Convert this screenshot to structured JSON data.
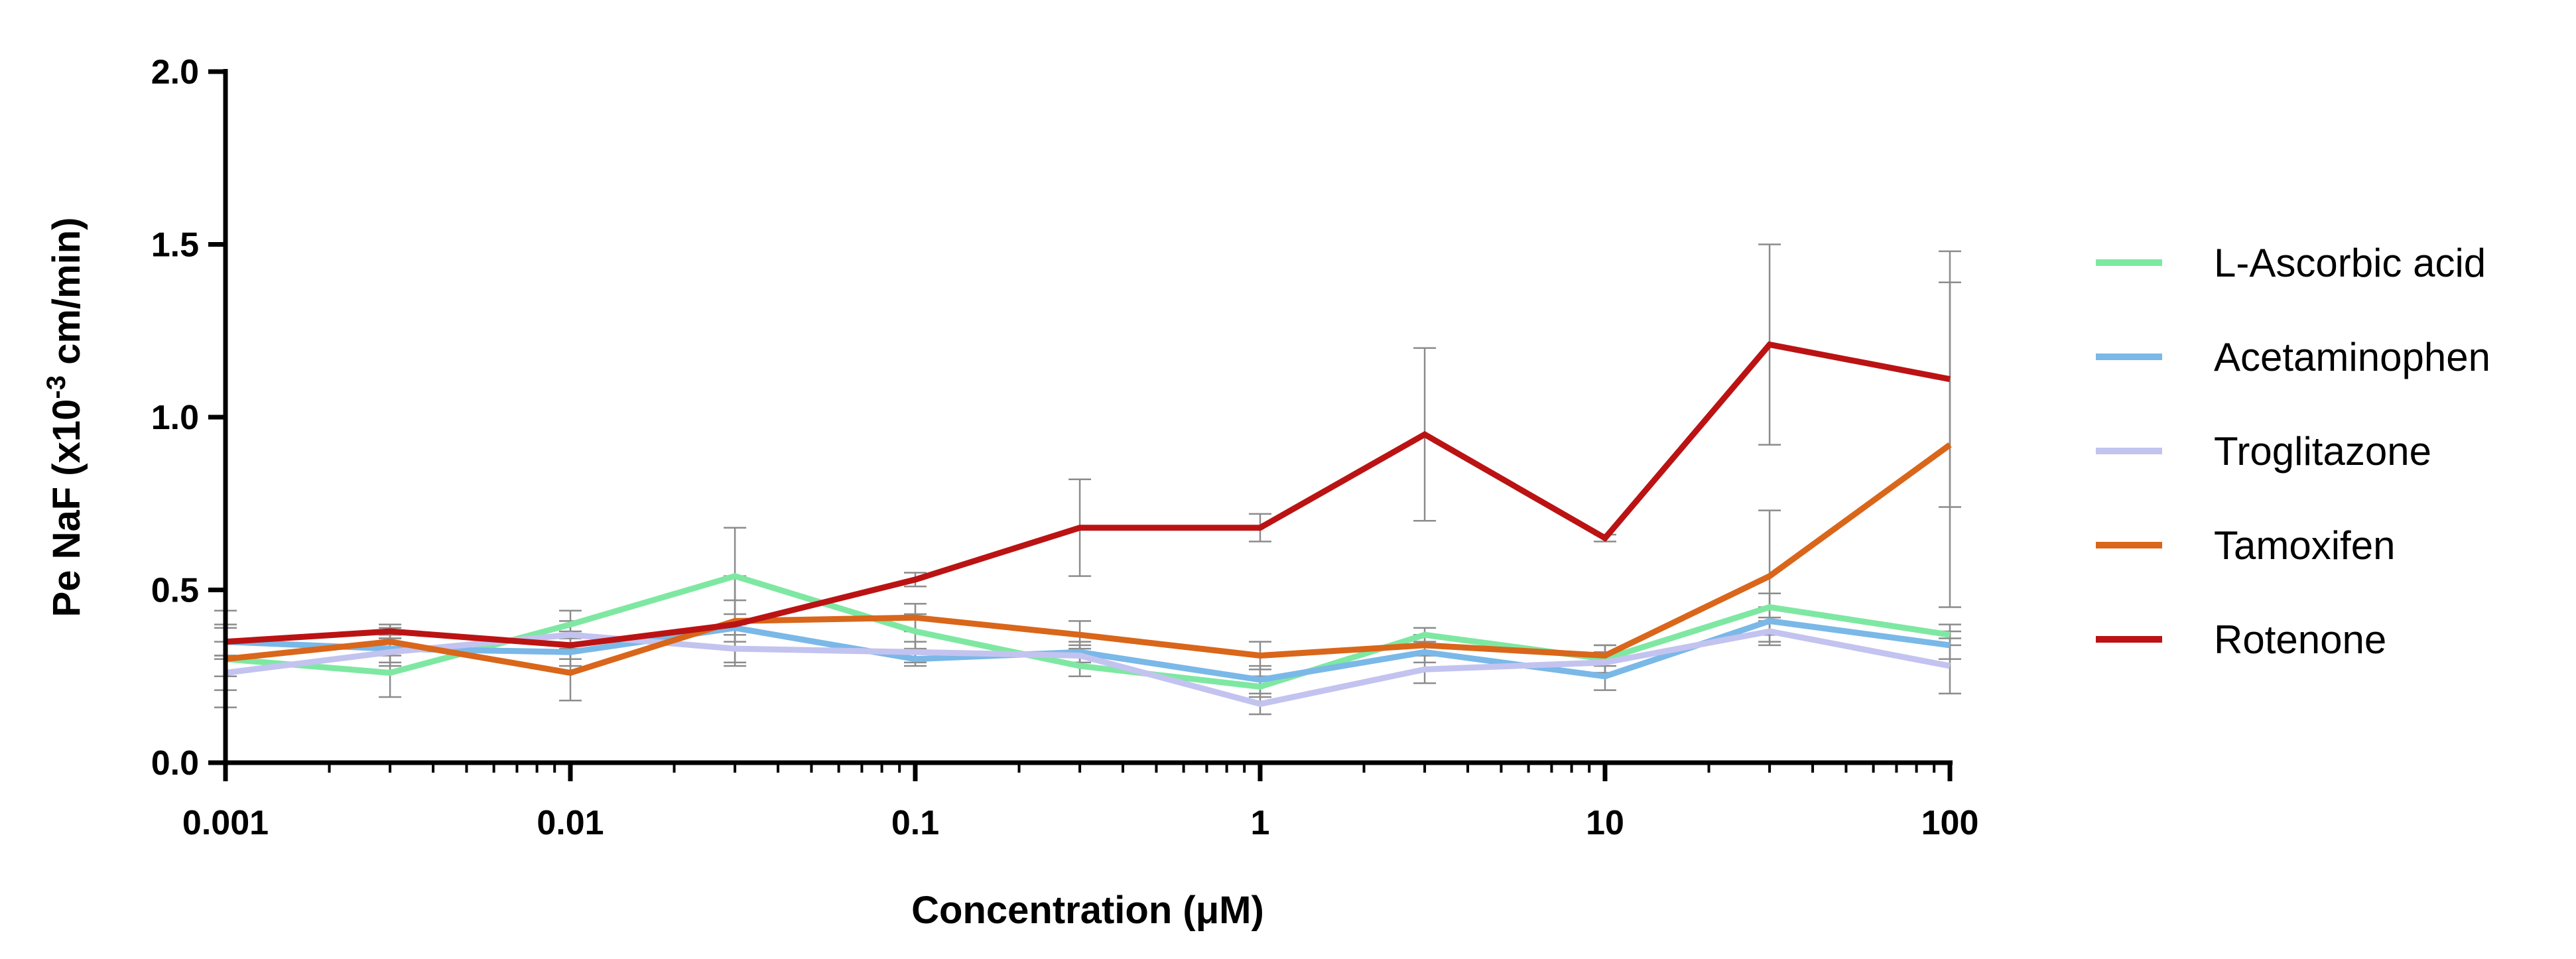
{
  "chart_data": {
    "type": "line",
    "title": "",
    "xlabel": "Concentration (μM)",
    "ylabel": {
      "prefix": "Pe NaF (x10",
      "superscript": "-3",
      "suffix": " cm/min)"
    },
    "xscale": "log",
    "xlim": [
      0.001,
      100
    ],
    "ylim": [
      0.0,
      2.0
    ],
    "xticks": [
      0.001,
      0.01,
      0.1,
      1,
      10,
      100
    ],
    "xtick_labels": [
      "0.001",
      "0.01",
      "0.1",
      "1",
      "10",
      "100"
    ],
    "yticks": [
      0.0,
      0.5,
      1.0,
      1.5,
      2.0
    ],
    "ytick_labels": [
      "0.0",
      "0.5",
      "1.0",
      "1.5",
      "2.0"
    ],
    "x": [
      0.001,
      0.003,
      0.01,
      0.03,
      0.1,
      0.3,
      1,
      3,
      10,
      30,
      100
    ],
    "legend_position": "right",
    "series": [
      {
        "name": "L-Ascorbic acid",
        "color": "#7ee8a2",
        "values": [
          0.3,
          0.26,
          0.4,
          0.54,
          0.38,
          0.28,
          0.22,
          0.37,
          0.3,
          0.45,
          0.37
        ],
        "errors": [
          0.14,
          0.07,
          0.04,
          0.14,
          0.05,
          0.03,
          0.03,
          0.02,
          0.04,
          0.04,
          0.03
        ]
      },
      {
        "name": "Acetaminophen",
        "color": "#7ab8e8",
        "values": [
          0.35,
          0.33,
          0.32,
          0.39,
          0.3,
          0.32,
          0.24,
          0.32,
          0.25,
          0.41,
          0.34
        ],
        "errors": [
          0.05,
          0.04,
          0.04,
          0.04,
          0.02,
          0.03,
          0.04,
          0.03,
          0.04,
          0.04,
          0.04
        ]
      },
      {
        "name": "Troglitazone",
        "color": "#c3c3f0",
        "values": [
          0.26,
          0.32,
          0.37,
          0.33,
          0.32,
          0.31,
          0.17,
          0.27,
          0.29,
          0.38,
          0.28
        ],
        "errors": [
          0.05,
          0.04,
          0.04,
          0.04,
          0.03,
          0.03,
          0.03,
          0.04,
          0.03,
          0.04,
          0.08
        ]
      },
      {
        "name": "Tamoxifen",
        "color": "#d9661a",
        "values": [
          0.3,
          0.35,
          0.26,
          0.41,
          0.42,
          0.37,
          0.31,
          0.34,
          0.31,
          0.54,
          0.92
        ],
        "errors": [
          0.05,
          0.04,
          0.08,
          0.13,
          0.04,
          0.04,
          0.04,
          0.03,
          0.03,
          0.19,
          0.47
        ]
      },
      {
        "name": "Rotenone",
        "color": "#bb1313",
        "values": [
          0.35,
          0.38,
          0.34,
          0.4,
          0.53,
          0.68,
          0.68,
          0.95,
          0.65,
          1.21,
          1.11
        ],
        "errors": [
          0.04,
          0.02,
          0.04,
          0.07,
          0.02,
          0.14,
          0.04,
          0.25,
          0.01,
          0.29,
          0.37
        ]
      }
    ]
  }
}
